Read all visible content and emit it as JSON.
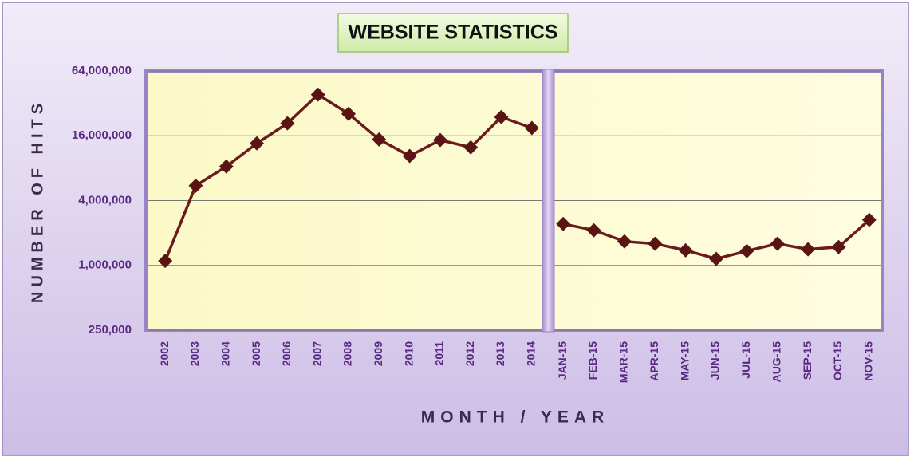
{
  "chart_data": [
    {
      "type": "line",
      "title": "WEBSITE STATISTICS",
      "ylabel": "NUMBER OF HITS",
      "xlabel": "MONTH / YEAR",
      "log_scale": true,
      "grid": true,
      "color": "#6b1b1b",
      "categories": [
        "2002",
        "2003",
        "2004",
        "2005",
        "2006",
        "2007",
        "2008",
        "2009",
        "2010",
        "2011",
        "2012",
        "2013",
        "2014"
      ],
      "values": [
        1100000,
        5500000,
        8300000,
        13600000,
        20900000,
        38600000,
        25600000,
        14800000,
        10400000,
        14600000,
        12500000,
        23900000,
        18900000
      ],
      "ylim": [
        250000,
        64000000
      ],
      "yticks": [
        {
          "value": 250000,
          "label": "250,000"
        },
        {
          "value": 1000000,
          "label": "1,000,000"
        },
        {
          "value": 4000000,
          "label": "4,000,000"
        },
        {
          "value": 16000000,
          "label": "16,000,000"
        },
        {
          "value": 64000000,
          "label": "64,000,000"
        }
      ]
    },
    {
      "type": "line",
      "color": "#6b1b1b",
      "categories": [
        "JAN-15",
        "FEB-15",
        "MAR-15",
        "APR-15",
        "MAY-15",
        "JUN-15",
        "JUL-15",
        "AUG-15",
        "SEP-15",
        "OCT-15",
        "NOV-15"
      ],
      "values": [
        2430000,
        2120000,
        1670000,
        1590000,
        1380000,
        1150000,
        1360000,
        1590000,
        1410000,
        1480000,
        2650000
      ]
    }
  ]
}
